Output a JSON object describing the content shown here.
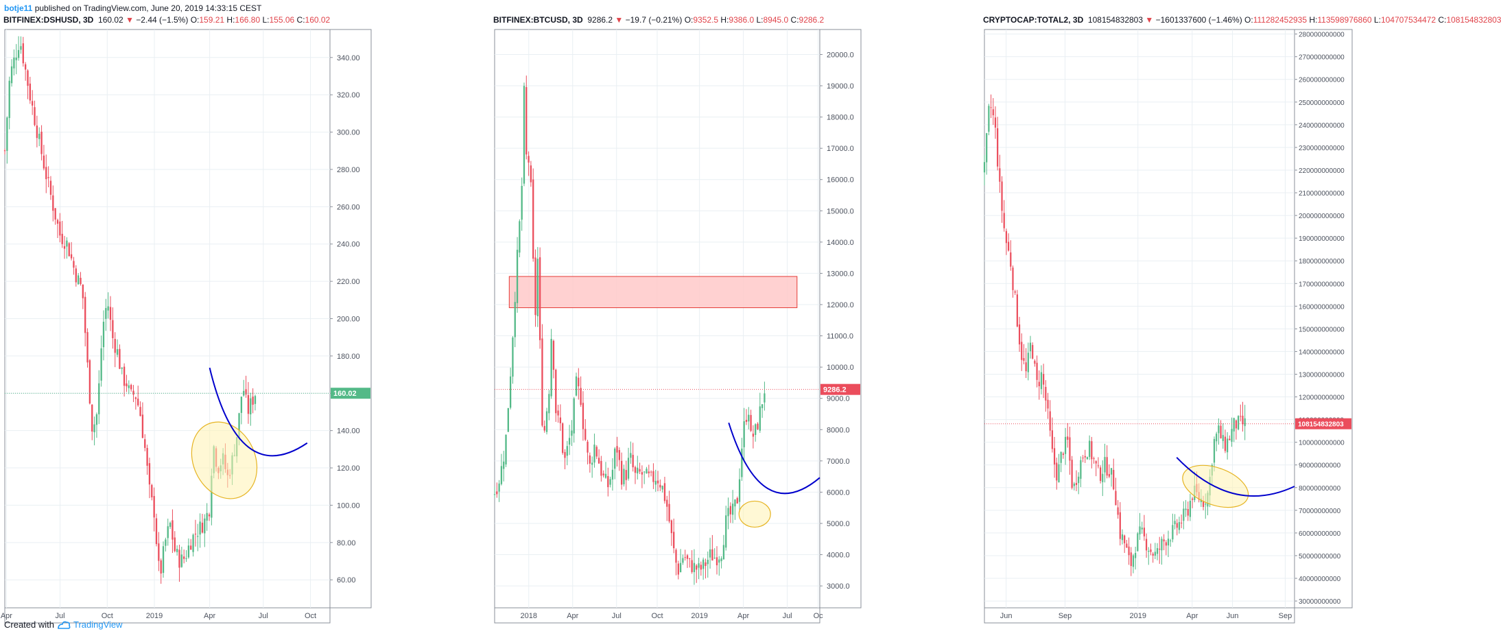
{
  "publication": {
    "author": "botje11",
    "text": "published on TradingView.com, June 20, 2019 14:33:15 CEST"
  },
  "footer": {
    "created_with": "Created with",
    "brand": "TradingView"
  },
  "colors": {
    "up": "#53b987",
    "down": "#eb4d5c",
    "grid": "#e9eff3",
    "accent": "#2196f3",
    "curve": "#0000cc",
    "ellipse_stroke": "#e6b422",
    "ellipse_fill": "#fff2b3",
    "zone_fill": "#ffc9c9",
    "zone_stroke": "#e53935"
  },
  "panels": [
    {
      "header": {
        "symbol": "BITFINEX:DSHUSD, 3D",
        "last": "160.02",
        "change": "−2.44 (−1.5%)",
        "o_label": "O:",
        "o": "159.21",
        "h_label": "H:",
        "h": "166.80",
        "l_label": "L:",
        "l": "155.06",
        "c_label": "C:",
        "c": "160.02"
      },
      "price_tag": "160.02",
      "price_tag_color": "#53b987"
    },
    {
      "header": {
        "symbol": "BITFINEX:BTCUSD, 3D",
        "last": "9286.2",
        "change": "−19.7 (−0.21%)",
        "o_label": "O:",
        "o": "9352.5",
        "h_label": "H:",
        "h": "9386.0",
        "l_label": "L:",
        "l": "8945.0",
        "c_label": "C:",
        "c": "9286.2"
      },
      "price_tag": "9286.2",
      "price_tag_color": "#eb4d5c"
    },
    {
      "header": {
        "symbol": "CRYPTOCAP:TOTAL2, 3D",
        "last": "108154832803",
        "change": "−1601337600 (−1.46%)",
        "o_label": "O:",
        "o": "111282452935",
        "h_label": "H:",
        "h": "113598976860",
        "l_label": "L:",
        "l": "104707534472",
        "c_label": "C:",
        "c": "108154832803"
      },
      "price_tag": "108154832803",
      "price_tag_color": "#eb4d5c"
    }
  ],
  "chart_data": [
    {
      "type": "candlestick",
      "symbol": "BITFINEX:DSHUSD",
      "interval": "3D",
      "x_ticks": [
        "Apr",
        "Jul",
        "Oct",
        "2019",
        "Apr",
        "Jul",
        "Oct"
      ],
      "y_ticks": [
        "340.00",
        "320.00",
        "300.00",
        "280.00",
        "260.00",
        "240.00",
        "220.00",
        "200.00",
        "180.00",
        "160.00",
        "140.00",
        "120.00",
        "100.00",
        "80.00",
        "60.00"
      ],
      "y_tick_values": [
        340,
        320,
        300,
        280,
        260,
        240,
        220,
        200,
        180,
        160,
        140,
        120,
        100,
        80,
        60
      ],
      "ylim": [
        45,
        355
      ],
      "last_price": 160.02,
      "close_path": [
        [
          0,
          290
        ],
        [
          0.02,
          330
        ],
        [
          0.06,
          350
        ],
        [
          0.1,
          320
        ],
        [
          0.13,
          300
        ],
        [
          0.16,
          280
        ],
        [
          0.19,
          262
        ],
        [
          0.22,
          245
        ],
        [
          0.25,
          240
        ],
        [
          0.28,
          225
        ],
        [
          0.31,
          215
        ],
        [
          0.33,
          175
        ],
        [
          0.35,
          140
        ],
        [
          0.37,
          150
        ],
        [
          0.39,
          195
        ],
        [
          0.41,
          210
        ],
        [
          0.43,
          190
        ],
        [
          0.45,
          182
        ],
        [
          0.47,
          168
        ],
        [
          0.49,
          165
        ],
        [
          0.5,
          158
        ],
        [
          0.52,
          160
        ],
        [
          0.54,
          150
        ],
        [
          0.56,
          130
        ],
        [
          0.58,
          105
        ],
        [
          0.6,
          95
        ],
        [
          0.61,
          70
        ],
        [
          0.62,
          62
        ],
        [
          0.64,
          80
        ],
        [
          0.66,
          90
        ],
        [
          0.68,
          75
        ],
        [
          0.7,
          70
        ],
        [
          0.72,
          72
        ],
        [
          0.74,
          80
        ],
        [
          0.76,
          85
        ],
        [
          0.78,
          88
        ],
        [
          0.8,
          92
        ],
        [
          0.82,
          100
        ],
        [
          0.83,
          135
        ],
        [
          0.85,
          120
        ],
        [
          0.87,
          125
        ],
        [
          0.89,
          115
        ],
        [
          0.91,
          125
        ],
        [
          0.93,
          140
        ],
        [
          0.95,
          165
        ],
        [
          0.97,
          150
        ],
        [
          1,
          160
        ]
      ],
      "annotations": {
        "curve": "blue arc",
        "ellipse": "yellow ellipse around consolidation"
      }
    },
    {
      "type": "candlestick",
      "symbol": "BITFINEX:BTCUSD",
      "interval": "3D",
      "x_ticks": [
        "2018",
        "Apr",
        "Jul",
        "Oct",
        "2019",
        "Apr",
        "Jul",
        "Oc"
      ],
      "y_ticks": [
        "20000.0",
        "19000.0",
        "18000.0",
        "17000.0",
        "16000.0",
        "15000.0",
        "14000.0",
        "13000.0",
        "12000.0",
        "11000.0",
        "10000.0",
        "9000.0",
        "8000.0",
        "7000.0",
        "6000.0",
        "5000.0",
        "4000.0",
        "3000.0"
      ],
      "y_tick_values": [
        20000,
        19000,
        18000,
        17000,
        16000,
        15000,
        14000,
        13000,
        12000,
        11000,
        10000,
        9000,
        8000,
        7000,
        6000,
        5000,
        4000,
        3000
      ],
      "ylim": [
        2300,
        20800
      ],
      "last_price": 9286.2,
      "resistance_zone": [
        11900,
        12900
      ],
      "close_path": [
        [
          0,
          6000
        ],
        [
          0.02,
          6500
        ],
        [
          0.04,
          7500
        ],
        [
          0.06,
          10000
        ],
        [
          0.08,
          13000
        ],
        [
          0.1,
          15500
        ],
        [
          0.11,
          19000
        ],
        [
          0.12,
          16000
        ],
        [
          0.13,
          17000
        ],
        [
          0.14,
          14000
        ],
        [
          0.15,
          11500
        ],
        [
          0.16,
          13500
        ],
        [
          0.17,
          10000
        ],
        [
          0.18,
          7500
        ],
        [
          0.19,
          8500
        ],
        [
          0.2,
          9000
        ],
        [
          0.21,
          11000
        ],
        [
          0.22,
          10000
        ],
        [
          0.23,
          8000
        ],
        [
          0.24,
          8500
        ],
        [
          0.25,
          7500
        ],
        [
          0.26,
          7000
        ],
        [
          0.28,
          7800
        ],
        [
          0.29,
          8200
        ],
        [
          0.3,
          9500
        ],
        [
          0.32,
          9000
        ],
        [
          0.33,
          8000
        ],
        [
          0.34,
          7500
        ],
        [
          0.35,
          6700
        ],
        [
          0.37,
          7500
        ],
        [
          0.38,
          7200
        ],
        [
          0.4,
          6500
        ],
        [
          0.42,
          6200
        ],
        [
          0.44,
          6800
        ],
        [
          0.45,
          7600
        ],
        [
          0.47,
          6500
        ],
        [
          0.49,
          6600
        ],
        [
          0.5,
          7200
        ],
        [
          0.52,
          6500
        ],
        [
          0.54,
          6600
        ],
        [
          0.56,
          6500
        ],
        [
          0.58,
          6400
        ],
        [
          0.6,
          6500
        ],
        [
          0.62,
          6200
        ],
        [
          0.64,
          5500
        ],
        [
          0.66,
          4300
        ],
        [
          0.67,
          3800
        ],
        [
          0.68,
          3500
        ],
        [
          0.7,
          4000
        ],
        [
          0.72,
          3700
        ],
        [
          0.74,
          3600
        ],
        [
          0.76,
          3500
        ],
        [
          0.78,
          3700
        ],
        [
          0.8,
          4000
        ],
        [
          0.82,
          3900
        ],
        [
          0.84,
          4100
        ],
        [
          0.86,
          5200
        ],
        [
          0.88,
          5300
        ],
        [
          0.9,
          5800
        ],
        [
          0.92,
          7900
        ],
        [
          0.94,
          8800
        ],
        [
          0.95,
          7700
        ],
        [
          0.97,
          8000
        ],
        [
          1,
          9286
        ]
      ],
      "annotations": {
        "curve": "blue arc",
        "ellipse": "yellow ellipse",
        "zone": "red resistance rectangle"
      }
    },
    {
      "type": "candlestick",
      "symbol": "CRYPTOCAP:TOTAL2",
      "interval": "3D",
      "x_ticks": [
        "Jun",
        "Sep",
        "2019",
        "Apr",
        "Jun",
        "Sep"
      ],
      "y_ticks": [
        "280000000000",
        "270000000000",
        "260000000000",
        "250000000000",
        "240000000000",
        "230000000000",
        "220000000000",
        "210000000000",
        "200000000000",
        "190000000000",
        "180000000000",
        "170000000000",
        "160000000000",
        "150000000000",
        "140000000000",
        "130000000000",
        "120000000000",
        "110000000000",
        "100000000000",
        "90000000000",
        "80000000000",
        "70000000000",
        "60000000000",
        "50000000000",
        "40000000000",
        "30000000000"
      ],
      "y_tick_values": [
        280000000000,
        270000000000,
        260000000000,
        250000000000,
        240000000000,
        230000000000,
        220000000000,
        210000000000,
        200000000000,
        190000000000,
        180000000000,
        170000000000,
        160000000000,
        150000000000,
        140000000000,
        130000000000,
        120000000000,
        110000000000,
        100000000000,
        90000000000,
        80000000000,
        70000000000,
        60000000000,
        50000000000,
        40000000000,
        30000000000
      ],
      "ylim": [
        27000000000,
        282000000000
      ],
      "last_price": 108154832803,
      "close_path": [
        [
          0,
          220000000000
        ],
        [
          0.02,
          250000000000
        ],
        [
          0.04,
          240000000000
        ],
        [
          0.06,
          210000000000
        ],
        [
          0.08,
          190000000000
        ],
        [
          0.1,
          180000000000
        ],
        [
          0.12,
          160000000000
        ],
        [
          0.14,
          140000000000
        ],
        [
          0.16,
          130000000000
        ],
        [
          0.18,
          145000000000
        ],
        [
          0.2,
          125000000000
        ],
        [
          0.22,
          130000000000
        ],
        [
          0.24,
          115000000000
        ],
        [
          0.26,
          95000000000
        ],
        [
          0.28,
          85000000000
        ],
        [
          0.3,
          97000000000
        ],
        [
          0.32,
          100000000000
        ],
        [
          0.34,
          78000000000
        ],
        [
          0.36,
          88000000000
        ],
        [
          0.38,
          95000000000
        ],
        [
          0.4,
          98000000000
        ],
        [
          0.42,
          92000000000
        ],
        [
          0.44,
          85000000000
        ],
        [
          0.46,
          90000000000
        ],
        [
          0.48,
          88000000000
        ],
        [
          0.5,
          80000000000
        ],
        [
          0.52,
          60000000000
        ],
        [
          0.54,
          55000000000
        ],
        [
          0.56,
          45000000000
        ],
        [
          0.58,
          55000000000
        ],
        [
          0.6,
          60000000000
        ],
        [
          0.62,
          56000000000
        ],
        [
          0.64,
          52000000000
        ],
        [
          0.66,
          50000000000
        ],
        [
          0.68,
          55000000000
        ],
        [
          0.7,
          58000000000
        ],
        [
          0.72,
          60000000000
        ],
        [
          0.74,
          63000000000
        ],
        [
          0.76,
          66000000000
        ],
        [
          0.78,
          70000000000
        ],
        [
          0.8,
          78000000000
        ],
        [
          0.82,
          76000000000
        ],
        [
          0.84,
          74000000000
        ],
        [
          0.86,
          78000000000
        ],
        [
          0.88,
          100000000000
        ],
        [
          0.9,
          105000000000
        ],
        [
          0.92,
          98000000000
        ],
        [
          0.94,
          102000000000
        ],
        [
          0.96,
          108000000000
        ]
      ],
      "annotations": {
        "curve": "blue arc",
        "ellipse": "yellow ellipse"
      }
    }
  ]
}
